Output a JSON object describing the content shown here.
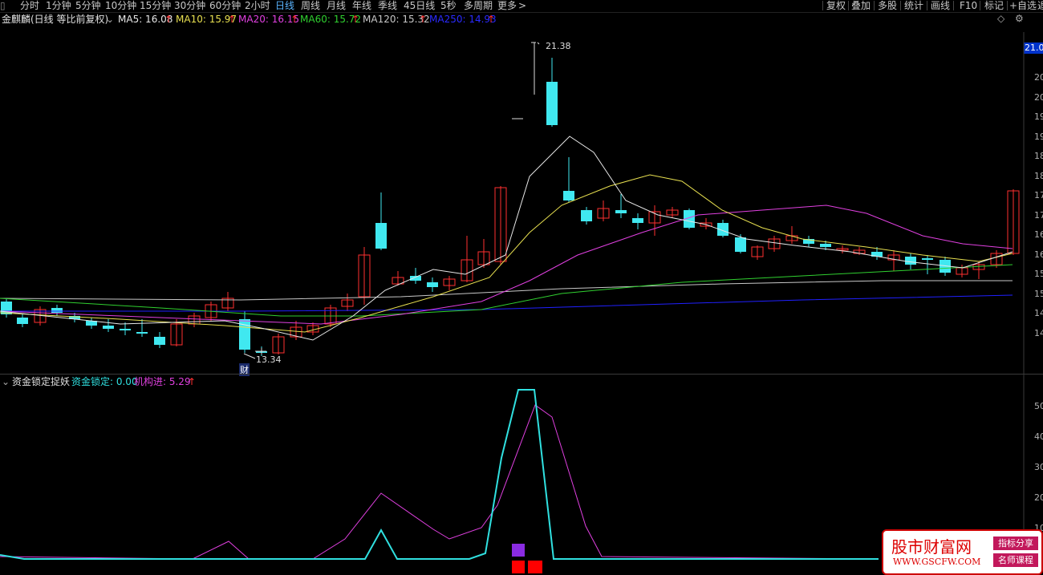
{
  "toolbar": {
    "left_items": [
      "分时",
      "1分钟",
      "5分钟",
      "10分钟",
      "15分钟",
      "30分钟",
      "60分钟",
      "2小时",
      "日线",
      "周线",
      "月线",
      "年线",
      "季线",
      "45日线",
      "5秒",
      "多周期",
      "更多"
    ],
    "active_item": "日线",
    "more_arrow": ">",
    "right_items": [
      "复权",
      "叠加",
      "多股",
      "统计",
      "画线",
      "F10",
      "标记",
      "+自选",
      "返"
    ]
  },
  "main_legend": {
    "stock_title": "金麒麟(日线 等比前复权)",
    "ma5": "MA5: 16.08",
    "ma10": "MA10: 15.97",
    "ma20": "MA20: 16.15",
    "ma60": "MA60: 15.72",
    "ma120": "MA120: 15.32",
    "ma250": "MA250: 14.93",
    "arrow": "↑",
    "colors": {
      "ma5": "#e8e8e8",
      "ma10": "#e8e050",
      "ma20": "#e040e0",
      "ma60": "#30d030",
      "ma120": "#c8c8c8",
      "ma250": "#2020ff"
    }
  },
  "price_axis": {
    "badge": "21.0",
    "ticks": [
      "20",
      "20",
      "19",
      "19",
      "18",
      "18",
      "17",
      "17",
      "16",
      "16",
      "15",
      "15",
      "14",
      "14"
    ]
  },
  "chart_annotations": {
    "high_label": "21.38",
    "low_label": "13.34",
    "event_badge": "财"
  },
  "indicator_legend": {
    "name": "资金锁定捉妖",
    "lock_label": "资金锁定: 0.00",
    "inst_label": "机构进: 5.29",
    "arrow": "↑",
    "colors": {
      "lock": "#30e0e0",
      "inst": "#e040e0"
    }
  },
  "indicator_axis": {
    "ticks": [
      "50",
      "40",
      "30",
      "20",
      "10"
    ]
  },
  "watermark": {
    "title": "股市财富网",
    "url": "WWW.GSCFW.COM",
    "badge1": "指标分享",
    "badge2": "名师课程"
  }
}
